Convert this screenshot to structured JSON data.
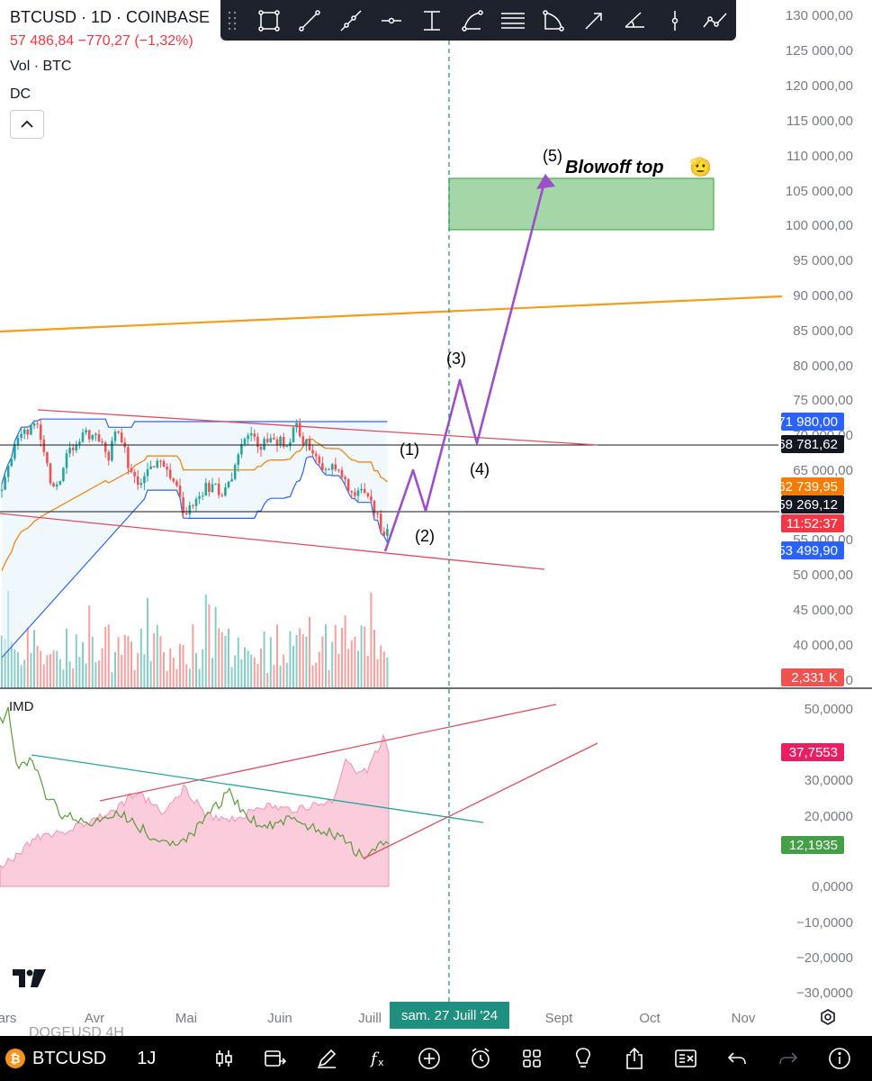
{
  "header": {
    "title": "BTCUSD · 1D · COINBASE",
    "price_line": "57 486,84 −770,27 (−1,32%)",
    "volume_label": "Vol · BTC",
    "indicator_label": "DC"
  },
  "toolbar": {
    "tools": [
      "rectangle-tool",
      "trend-line-tool",
      "ray-tool",
      "horizontal-ray-tool",
      "price-range-tool",
      "arc-tool",
      "fib-retracement-tool",
      "curve-tool",
      "arrow-tool",
      "angle-tool",
      "vertical-line-tool",
      "path-tool"
    ]
  },
  "annotations": {
    "wave_1": "(1)",
    "wave_2": "(2)",
    "wave_3": "(3)",
    "wave_4": "(4)",
    "wave_5": "(5)",
    "target_text": "Blowoff top",
    "target_emoji": "🫡"
  },
  "price_axis": {
    "ticks": [
      "130 000,00",
      "125 000,00",
      "120 000,00",
      "115 000,00",
      "110 000,00",
      "105 000,00",
      "100 000,00",
      "95 000,00",
      "90 000,00",
      "85 000,00",
      "80 000,00",
      "75 000,00",
      "70 000,00",
      "65 000,00",
      "55 000,00",
      "50 000,00",
      "45 000,00",
      "40 000,00",
      "0"
    ],
    "badges": {
      "dc_upper": {
        "text": "71 980,00",
        "color": "#2962ff"
      },
      "line_high": {
        "text": "68 781,62",
        "color": "#131722"
      },
      "dc_mid": {
        "text": "62 739,95",
        "color": "#f57c00"
      },
      "line_low": {
        "text": "59 269,12",
        "color": "#131722"
      },
      "countdown": {
        "text": "11:52:37",
        "color": "#f23645"
      },
      "dc_lower": {
        "text": "53 499,90",
        "color": "#2962ff"
      },
      "volume": {
        "text": "2,331 K",
        "color": "#ef5350"
      }
    }
  },
  "imd": {
    "label": "IMD",
    "ticks": [
      "50,0000",
      "30,0000",
      "20,0000",
      "0,0000",
      "−10,0000",
      "−20,0000",
      "−30,0000"
    ],
    "badges": {
      "pink": {
        "text": "37,7553",
        "color": "#e91e63"
      },
      "green": {
        "text": "12,1935",
        "color": "#43a047"
      }
    }
  },
  "time_axis": {
    "labels": [
      "ars",
      "Avr",
      "Mai",
      "Juin",
      "Juill",
      "Sept",
      "Oct",
      "Nov"
    ],
    "cursor_date": "sam. 27 Juill '24"
  },
  "bottom_bar": {
    "symbol": "BTCUSD",
    "interval": "1J",
    "ghost_symbol": "DOGEUSD   4H",
    "icons": [
      "candle-type-icon",
      "compare-icon",
      "drawing-icon",
      "indicators-icon",
      "add-icon",
      "alert-icon",
      "layouts-icon",
      "ideas-icon",
      "share-icon",
      "object-tree-icon",
      "undo-icon",
      "redo-icon",
      "info-icon"
    ]
  },
  "colors": {
    "bull": "#26a69a",
    "bear": "#ef5350",
    "dc_band": "#2962ff",
    "dc_mid": "#f57c00",
    "trend_red": "#e04d5f",
    "wave_purple": "#9b4fc9",
    "target_zone": "#a5d6a7",
    "resistance_orange": "#f59c1a",
    "cursor_teal": "#1f8f7f"
  }
}
